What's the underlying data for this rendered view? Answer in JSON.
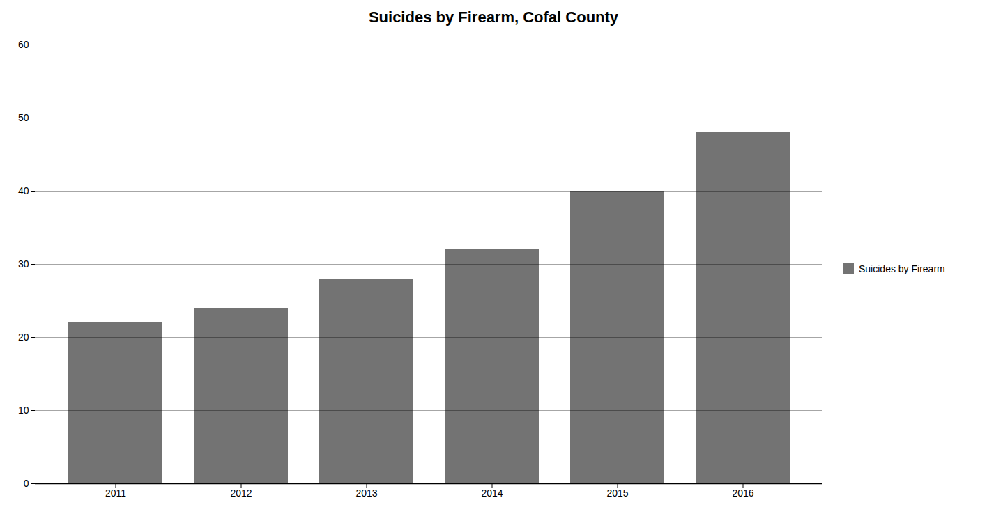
{
  "chart_data": {
    "type": "bar",
    "title": "Suicides by Firearm, Cofal County",
    "categories": [
      "2011",
      "2012",
      "2013",
      "2014",
      "2015",
      "2016"
    ],
    "series": [
      {
        "name": "Suicides by Firearm",
        "color": "#737373",
        "values": [
          22,
          24,
          28,
          32,
          40,
          48
        ]
      }
    ],
    "ylim": [
      0,
      60
    ],
    "yticks": [
      0,
      10,
      20,
      30,
      40,
      50,
      60
    ],
    "grid": true,
    "legend": "right"
  }
}
